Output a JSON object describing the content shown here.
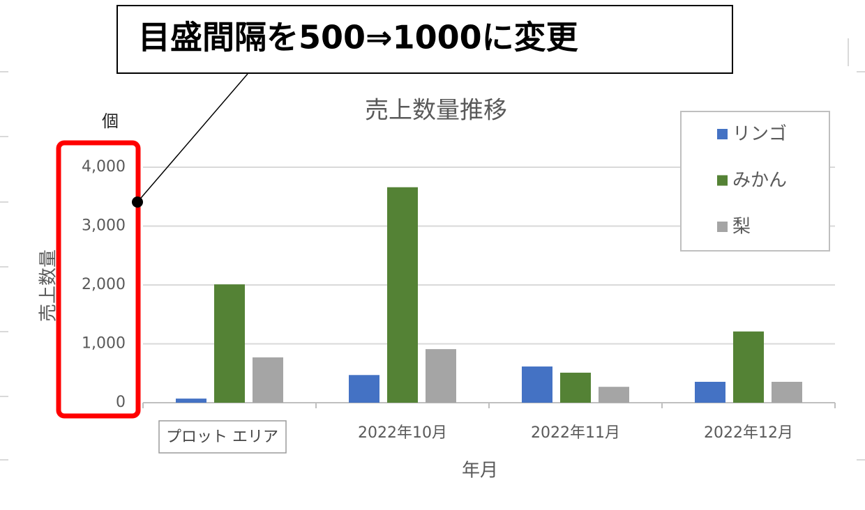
{
  "annotation": "目盛間隔を500⇒1000に変更",
  "tooltip": "プロット エリア",
  "chart_data": {
    "type": "bar",
    "title": "売上数量推移",
    "x_label": "年月",
    "y_label": "売上数量",
    "unit_label": "個",
    "categories": [
      null,
      "2022年10月",
      "2022年11月",
      "2022年12月"
    ],
    "series": [
      {
        "name": "リンゴ",
        "color": "#4472c4",
        "values": [
          70,
          470,
          615,
          355
        ]
      },
      {
        "name": "みかん",
        "color": "#548235",
        "values": [
          2010,
          3660,
          510,
          1210
        ]
      },
      {
        "name": "梨",
        "color": "#a5a5a5",
        "values": [
          770,
          910,
          270,
          355
        ]
      }
    ],
    "ylim": [
      0,
      4000
    ],
    "yticks": [
      0,
      {
        "value": 1000,
        "label": "1,000"
      },
      {
        "value": 2000,
        "label": "2,000"
      },
      {
        "value": 3000,
        "label": "3,000"
      },
      {
        "value": 4000,
        "label": "4,000"
      }
    ],
    "grid": true,
    "legend": "top-right"
  }
}
